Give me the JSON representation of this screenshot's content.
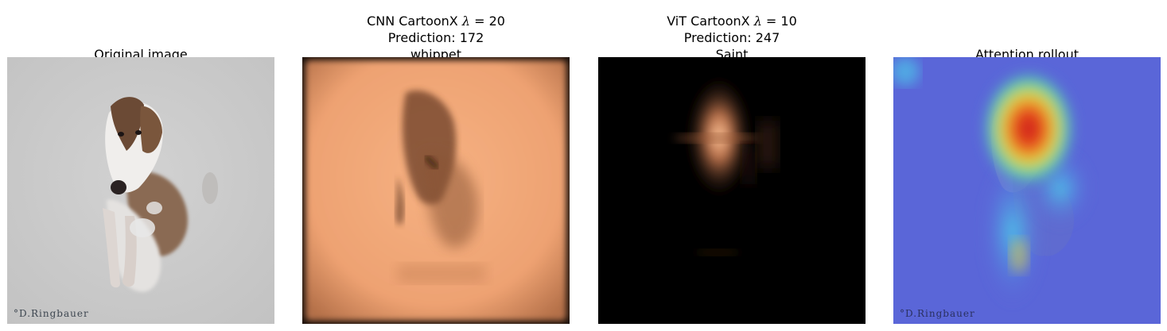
{
  "panels": [
    {
      "title": "Original image",
      "watermark": "°D.Ringbauer"
    },
    {
      "title_line1_prefix": "CNN CartoonX ",
      "title_line1_lambda": "λ",
      "title_line1_suffix": " = 20",
      "title_line2": "Prediction: 172",
      "title_line3": "whippet"
    },
    {
      "title_line1_prefix": "ViT CartoonX ",
      "title_line1_lambda": "λ",
      "title_line1_suffix": " = 10",
      "title_line2": "Prediction: 247",
      "title_line3": "Saint"
    },
    {
      "title": "Attention rollout",
      "watermark": "°D.Ringbauer"
    }
  ],
  "colors": {
    "snow": "#c9c9c9",
    "copper_bright": "#f2a878",
    "heat_base": "#5a66d8"
  }
}
